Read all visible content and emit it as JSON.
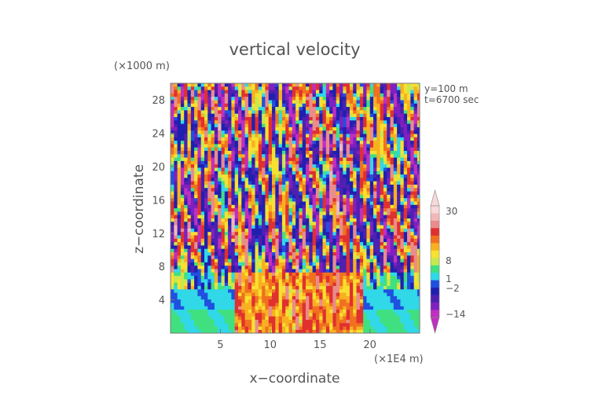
{
  "chart_data": {
    "type": "heatmap",
    "title": "vertical velocity",
    "xlabel": "x−coordinate",
    "ylabel": "z−coordinate",
    "x_unit": "(×1E4 m)",
    "y_unit": "(×1000 m)",
    "annotations": [
      "y=100  m",
      "t=6700 sec"
    ],
    "xlim": [
      0,
      25
    ],
    "ylim": [
      0,
      30
    ],
    "x_ticks": [
      5,
      10,
      15,
      20
    ],
    "y_ticks": [
      4,
      8,
      12,
      16,
      20,
      24,
      28
    ],
    "colorbar": {
      "tick_labels": [
        "30",
        "8",
        "1",
        "−2",
        "−14"
      ],
      "tick_values": [
        30,
        8,
        1,
        -2,
        -14
      ],
      "levels": [
        {
          "value": 30,
          "color": "#f7d9d9"
        },
        {
          "value": 20,
          "color": "#f1b8b8"
        },
        {
          "value": 12,
          "color": "#ea8c8c"
        },
        {
          "value": 8,
          "color": "#e03030"
        },
        {
          "value": 6,
          "color": "#f07020"
        },
        {
          "value": 4,
          "color": "#f8b020"
        },
        {
          "value": 2,
          "color": "#f8e030"
        },
        {
          "value": 1,
          "color": "#c8e850"
        },
        {
          "value": 0,
          "color": "#40e080"
        },
        {
          "value": -1,
          "color": "#30d8e8"
        },
        {
          "value": -2,
          "color": "#2050e0"
        },
        {
          "value": -6,
          "color": "#2020b0"
        },
        {
          "value": -10,
          "color": "#5020b0"
        },
        {
          "value": -14,
          "color": "#8020c0"
        },
        {
          "value": -20,
          "color": "#c030c0"
        }
      ]
    },
    "grid": false
  }
}
